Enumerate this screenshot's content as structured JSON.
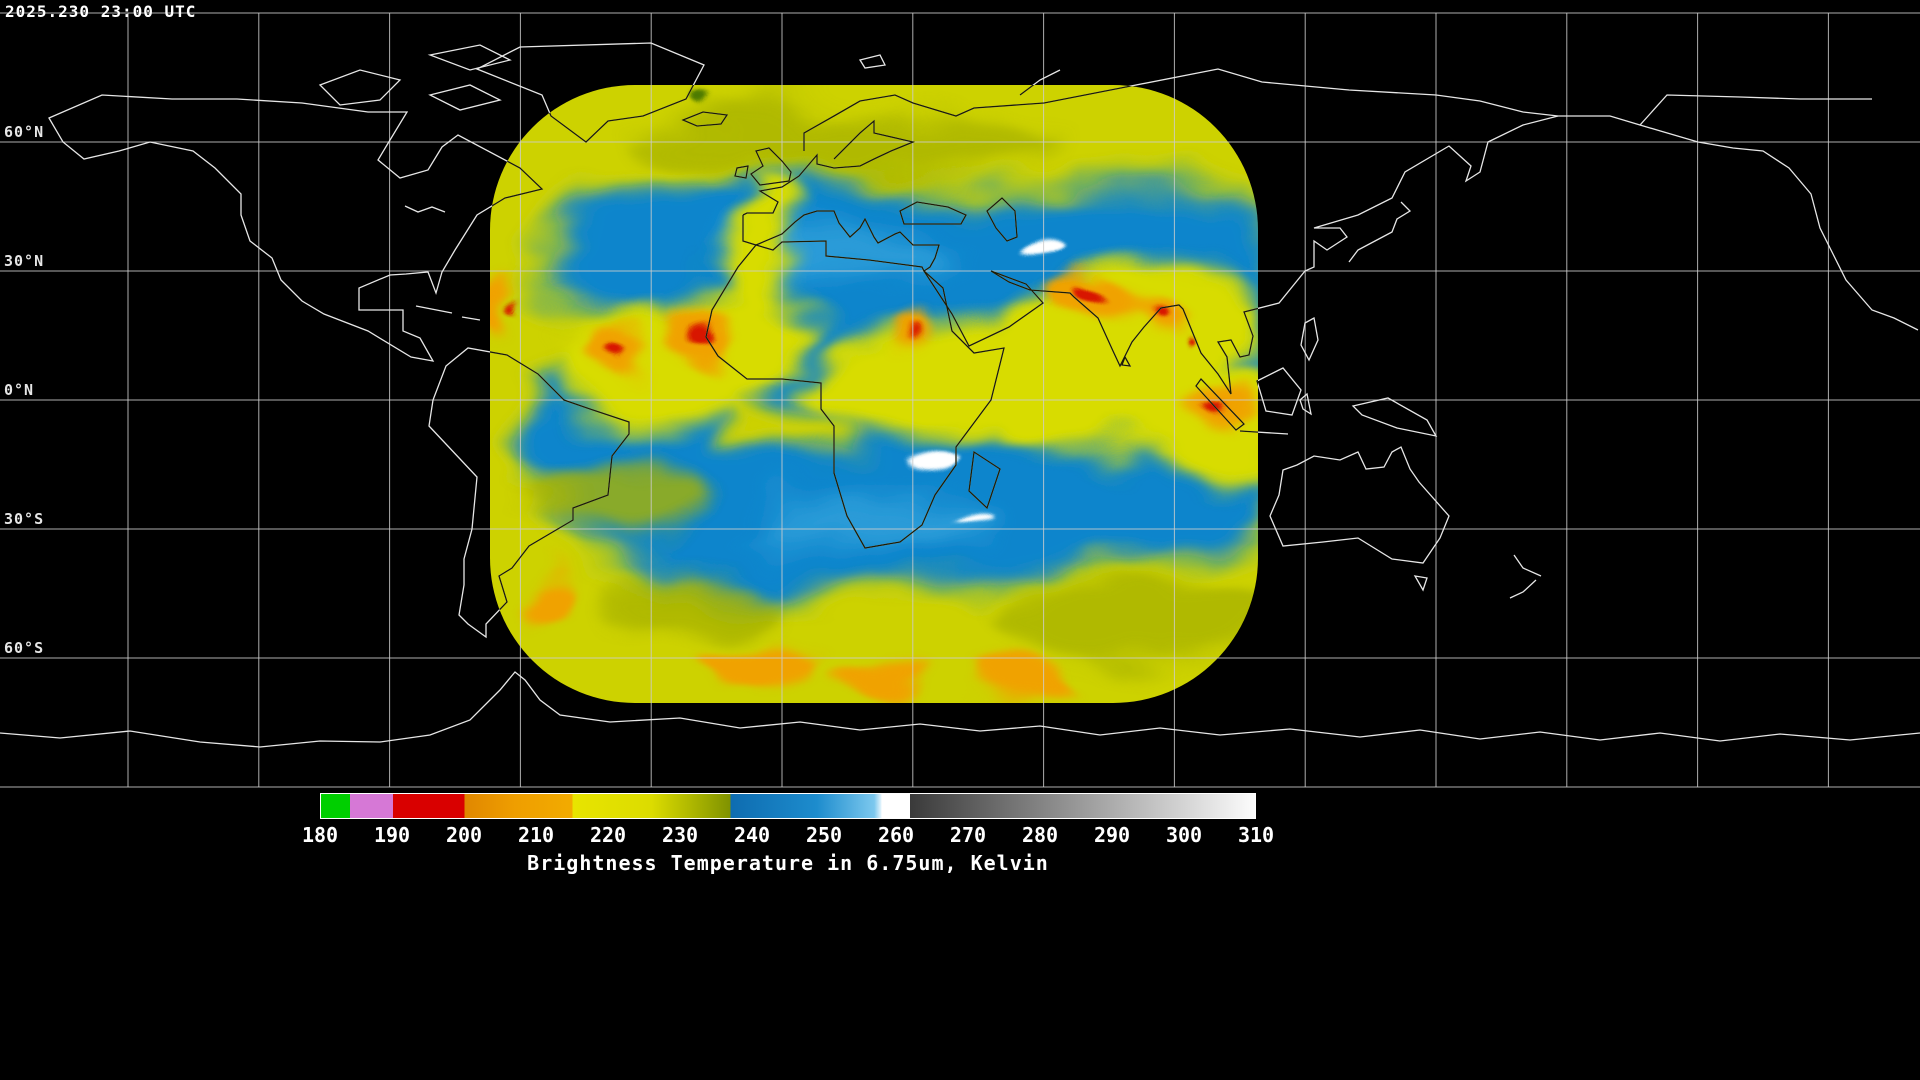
{
  "header": {
    "timestamp": "2025.230 23:00 UTC"
  },
  "map": {
    "lat_ticks": [
      {
        "label": "60°N",
        "lat": 60
      },
      {
        "label": "30°N",
        "lat": 30
      },
      {
        "label": "0°N",
        "lat": 0
      },
      {
        "label": "30°S",
        "lat": -30
      },
      {
        "label": "60°S",
        "lat": -60
      }
    ],
    "grid": {
      "lat_step_deg": 30,
      "lon_step_deg": 30
    }
  },
  "colorbar": {
    "title": "Brightness Temperature in 6.75um, Kelvin",
    "min": 180,
    "max": 310,
    "ticks": [
      180,
      190,
      200,
      210,
      220,
      230,
      240,
      250,
      260,
      270,
      280,
      290,
      300,
      310
    ],
    "stops": [
      {
        "v": 180,
        "c": "#00cf00"
      },
      {
        "v": 184,
        "c": "#00cf00"
      },
      {
        "v": 184,
        "c": "#d678d6"
      },
      {
        "v": 190,
        "c": "#d678d6"
      },
      {
        "v": 190,
        "c": "#d90000"
      },
      {
        "v": 200,
        "c": "#d90000"
      },
      {
        "v": 200,
        "c": "#e08700"
      },
      {
        "v": 207,
        "c": "#ef9e00"
      },
      {
        "v": 215,
        "c": "#f2ab00"
      },
      {
        "v": 215,
        "c": "#e8e400"
      },
      {
        "v": 226,
        "c": "#dcdc00"
      },
      {
        "v": 232,
        "c": "#aab400"
      },
      {
        "v": 237,
        "c": "#7f9200"
      },
      {
        "v": 237,
        "c": "#0e6cb0"
      },
      {
        "v": 249,
        "c": "#1d8ccd"
      },
      {
        "v": 257,
        "c": "#7cc8ee"
      },
      {
        "v": 258,
        "c": "#e8f6fd"
      },
      {
        "v": 258,
        "c": "#ffffff"
      },
      {
        "v": 262,
        "c": "#ffffff"
      },
      {
        "v": 262,
        "c": "#3a3a3a"
      },
      {
        "v": 310,
        "c": "#fcfcfc"
      }
    ]
  },
  "theme": {
    "background": "#000000",
    "coast_outside": "#e6e6e6",
    "coast_inside": "#1c1c05",
    "grid_line": "#cccccc",
    "wv_yellow": "#cdd203",
    "wv_blue": "#0e85cc",
    "wv_orange": "#f0a200",
    "wv_red": "#d81400",
    "wv_white": "#ffffff"
  }
}
